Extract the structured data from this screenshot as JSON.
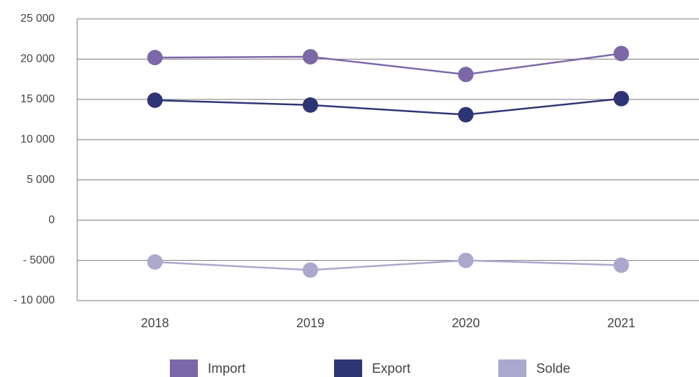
{
  "chart_data": {
    "type": "line",
    "categories": [
      "2018",
      "2019",
      "2020",
      "2021"
    ],
    "series": [
      {
        "name": "Import",
        "color": "#7b68a8",
        "values": [
          20200,
          20300,
          18100,
          20700
        ]
      },
      {
        "name": "Export",
        "color": "#2e3575",
        "values": [
          14900,
          14300,
          13100,
          15100
        ]
      },
      {
        "name": "Solde",
        "color": "#aaa8cd",
        "values": [
          -5200,
          -6200,
          -5000,
          -5600
        ]
      }
    ],
    "ylim": [
      -10000,
      25000
    ],
    "yticks": [
      {
        "value": -10000,
        "label": "- 10 000"
      },
      {
        "value": -5000,
        "label": "- 5000"
      },
      0,
      {
        "value": 5000,
        "label": "5 000"
      },
      {
        "value": 10000,
        "label": "10 000"
      },
      {
        "value": 15000,
        "label": "15 000"
      },
      {
        "value": 20000,
        "label": "20 000"
      },
      {
        "value": 25000,
        "label": "25 000"
      }
    ],
    "grid": true,
    "legend": "bottom"
  }
}
